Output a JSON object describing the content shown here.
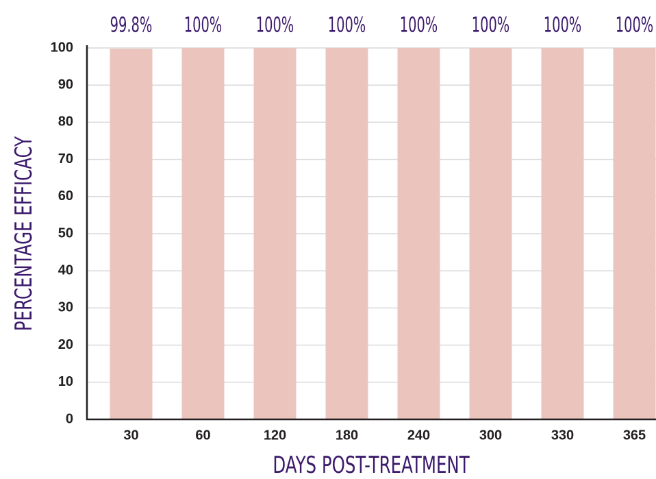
{
  "chart_data": {
    "type": "bar",
    "categories": [
      "30",
      "60",
      "120",
      "180",
      "240",
      "300",
      "330",
      "365"
    ],
    "values": [
      99.8,
      100,
      100,
      100,
      100,
      100,
      100,
      100
    ],
    "value_labels": [
      "99.8%",
      "100%",
      "100%",
      "100%",
      "100%",
      "100%",
      "100%",
      "100%"
    ],
    "color": "#ebc5bd",
    "x_label": "DAYS POST-TREATMENT",
    "y_label": "PERCENTAGE EFFICACY",
    "ylim": [
      0,
      100
    ],
    "yticks": [
      0,
      10,
      20,
      30,
      40,
      50,
      60,
      70,
      80,
      90,
      100
    ],
    "grid": true
  }
}
